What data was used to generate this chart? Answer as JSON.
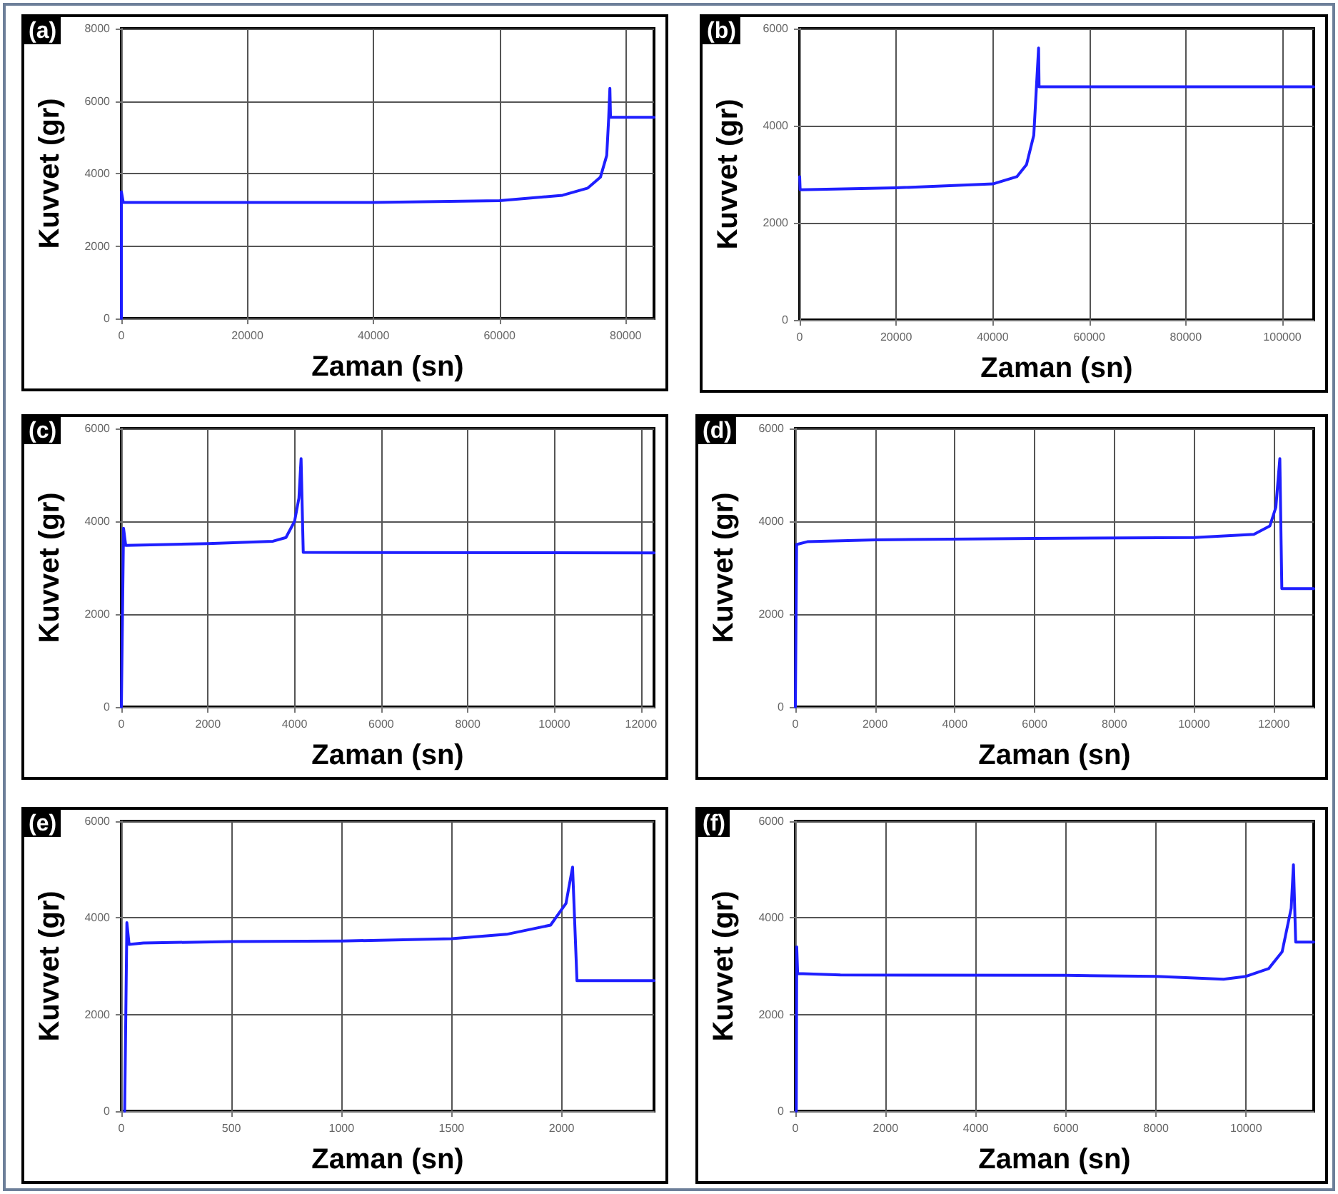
{
  "chart_data": [
    {
      "type": "line",
      "title": "(a)",
      "xlabel": "Zaman (sn)",
      "ylabel": "Kuvvet (gr)",
      "xlim": [
        0,
        84500
      ],
      "xticks": [
        0,
        20000,
        40000,
        60000,
        80000
      ],
      "ylim": [
        0,
        8000
      ],
      "yticks": [
        0,
        2000,
        4000,
        6000,
        8000
      ],
      "grid": true,
      "marker": "none",
      "line_style": "solid",
      "series": [
        {
          "color": "#1f1fff",
          "x": [
            0,
            0,
            300,
            20000,
            40000,
            60000,
            70000,
            74000,
            76000,
            77000,
            77300,
            77500,
            77600,
            84500
          ],
          "values": [
            0,
            3500,
            3200,
            3200,
            3200,
            3250,
            3400,
            3600,
            3900,
            4500,
            5500,
            6350,
            5550,
            5550
          ]
        }
      ]
    },
    {
      "type": "line",
      "title": "(b)",
      "xlabel": "Zaman (sn)",
      "ylabel": "Kuvvet (gr)",
      "xlim": [
        0,
        106500
      ],
      "xticks": [
        0,
        20000,
        40000,
        60000,
        80000,
        100000
      ],
      "ylim": [
        0,
        6000
      ],
      "yticks": [
        0,
        2000,
        4000,
        6000
      ],
      "grid": true,
      "marker": "none",
      "line_style": "solid",
      "series": [
        {
          "color": "#1f1fff",
          "x": [
            0,
            100,
            20000,
            40000,
            45000,
            47000,
            48500,
            49500,
            49600,
            106500
          ],
          "values": [
            2950,
            2680,
            2720,
            2800,
            2950,
            3200,
            3800,
            5600,
            4800,
            4800
          ]
        }
      ]
    },
    {
      "type": "line",
      "title": "(c)",
      "xlabel": "Zaman (sn)",
      "ylabel": "Kuvvet (gr)",
      "xlim": [
        0,
        12300
      ],
      "xticks": [
        0,
        2000,
        4000,
        6000,
        8000,
        10000,
        12000
      ],
      "ylim": [
        0,
        6000
      ],
      "yticks": [
        0,
        2000,
        4000,
        6000
      ],
      "grid": true,
      "marker": "none",
      "line_style": "solid",
      "series": [
        {
          "color": "#1f1fff",
          "x": [
            0,
            50,
            100,
            2000,
            3500,
            3800,
            4000,
            4100,
            4150,
            4200,
            12300
          ],
          "values": [
            0,
            3850,
            3480,
            3520,
            3570,
            3650,
            4000,
            4500,
            5350,
            3330,
            3320
          ]
        }
      ]
    },
    {
      "type": "line",
      "title": "(d)",
      "xlabel": "Zaman (sn)",
      "ylabel": "Kuvvet (gr)",
      "xlim": [
        0,
        13000
      ],
      "xticks": [
        0,
        2000,
        4000,
        6000,
        8000,
        10000,
        12000
      ],
      "ylim": [
        0,
        6000
      ],
      "yticks": [
        0,
        2000,
        4000,
        6000
      ],
      "grid": true,
      "marker": "none",
      "line_style": "solid",
      "series": [
        {
          "color": "#1f1fff",
          "x": [
            0,
            30,
            300,
            2000,
            6000,
            10000,
            11500,
            11900,
            12050,
            12150,
            12200,
            13000
          ],
          "values": [
            0,
            3500,
            3560,
            3600,
            3630,
            3650,
            3720,
            3900,
            4300,
            5350,
            2550,
            2550
          ]
        }
      ]
    },
    {
      "type": "line",
      "title": "(e)",
      "xlabel": "Zaman (sn)",
      "ylabel": "Kuvvet (gr)",
      "xlim": [
        0,
        2420
      ],
      "xticks": [
        0,
        500,
        1000,
        1500,
        2000
      ],
      "ylim": [
        0,
        6000
      ],
      "yticks": [
        0,
        2000,
        4000,
        6000
      ],
      "grid": true,
      "marker": "none",
      "line_style": "solid",
      "series": [
        {
          "color": "#1f1fff",
          "x": [
            15,
            25,
            35,
            100,
            500,
            1000,
            1500,
            1750,
            1950,
            2020,
            2050,
            2070,
            2420
          ],
          "values": [
            0,
            3900,
            3450,
            3480,
            3510,
            3520,
            3570,
            3660,
            3850,
            4300,
            5050,
            2700,
            2700
          ]
        }
      ]
    },
    {
      "type": "line",
      "title": "(f)",
      "xlabel": "Zaman (sn)",
      "ylabel": "Kuvvet (gr)",
      "xlim": [
        0,
        11500
      ],
      "xticks": [
        0,
        2000,
        4000,
        6000,
        8000,
        10000
      ],
      "ylim": [
        0,
        6000
      ],
      "yticks": [
        0,
        2000,
        4000,
        6000
      ],
      "grid": true,
      "marker": "none",
      "line_style": "solid",
      "series": [
        {
          "color": "#1f1fff",
          "x": [
            20,
            30,
            50,
            1000,
            6000,
            8000,
            9500,
            10000,
            10500,
            10800,
            11000,
            11050,
            11100,
            11500
          ],
          "values": [
            0,
            3400,
            2850,
            2820,
            2810,
            2790,
            2730,
            2790,
            2950,
            3300,
            4200,
            5100,
            3500,
            3500
          ]
        }
      ]
    }
  ]
}
